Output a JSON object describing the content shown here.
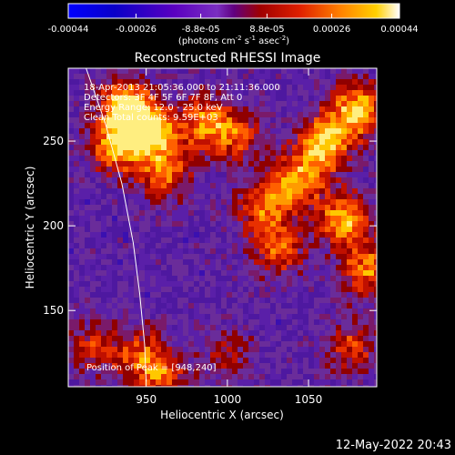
{
  "chart_data": {
    "type": "heatmap",
    "title": "Reconstructed RHESSI Image",
    "xlabel": "Heliocentric X (arcsec)",
    "ylabel": "Heliocentric Y (arcsec)",
    "xlim": [
      902,
      1092
    ],
    "ylim": [
      105,
      293
    ],
    "x_ticks": [
      950,
      1000,
      1050
    ],
    "y_ticks": [
      150,
      200,
      250
    ],
    "colorbar": {
      "range": [
        -0.00044,
        0.00044
      ],
      "tick_labels": [
        "-0.00044",
        "-0.00026",
        "-8.8e-05",
        "8.8e-05",
        "0.00026",
        "0.00044"
      ],
      "tick_values": [
        -0.00044,
        -0.00026,
        -8.8e-05,
        8.8e-05,
        0.00026,
        0.00044
      ],
      "label": "(photons cm",
      "label_sup1": "-2",
      "label_mid1": " s",
      "label_sup2": "-1",
      "label_mid2": " asec",
      "label_sup3": "-2",
      "label_end": ")"
    },
    "annotations": [
      "18-Apr-2013 21:05:36.000 to 21:11:36.000",
      "Detectors: 3F 4F 5F 6F 7F 8F, Att 0",
      "Energy Range: 12.0 - 25.0 keV",
      "Clean     Total counts: 9.59E+03"
    ],
    "peak_label": "Position of Peak = [948,240]",
    "peak_position": [
      948,
      240
    ],
    "limb_curve": [
      [
        913,
        293
      ],
      [
        925,
        260
      ],
      [
        935,
        225
      ],
      [
        942,
        190
      ],
      [
        946,
        160
      ],
      [
        949,
        130
      ],
      [
        950,
        108
      ]
    ],
    "bright_regions": [
      {
        "x": 935,
        "y": 272,
        "intensity": 0.95
      },
      {
        "x": 951,
        "y": 258,
        "intensity": 1.0
      },
      {
        "x": 930,
        "y": 248,
        "intensity": 0.75
      },
      {
        "x": 960,
        "y": 232,
        "intensity": 0.65
      },
      {
        "x": 985,
        "y": 262,
        "intensity": 0.7
      },
      {
        "x": 1005,
        "y": 255,
        "intensity": 0.55
      },
      {
        "x": 1058,
        "y": 250,
        "intensity": 0.95
      },
      {
        "x": 1078,
        "y": 270,
        "intensity": 0.9
      },
      {
        "x": 1040,
        "y": 228,
        "intensity": 0.8
      },
      {
        "x": 1070,
        "y": 205,
        "intensity": 0.85
      },
      {
        "x": 1020,
        "y": 212,
        "intensity": 0.6
      },
      {
        "x": 1085,
        "y": 175,
        "intensity": 0.7
      },
      {
        "x": 1030,
        "y": 188,
        "intensity": 0.6
      },
      {
        "x": 1075,
        "y": 130,
        "intensity": 0.5
      },
      {
        "x": 1000,
        "y": 125,
        "intensity": 0.35
      },
      {
        "x": 945,
        "y": 125,
        "intensity": 0.6
      },
      {
        "x": 960,
        "y": 112,
        "intensity": 0.5
      },
      {
        "x": 915,
        "y": 130,
        "intensity": 0.45
      }
    ]
  },
  "footer": {
    "timestamp": "12-May-2022 20:43"
  }
}
